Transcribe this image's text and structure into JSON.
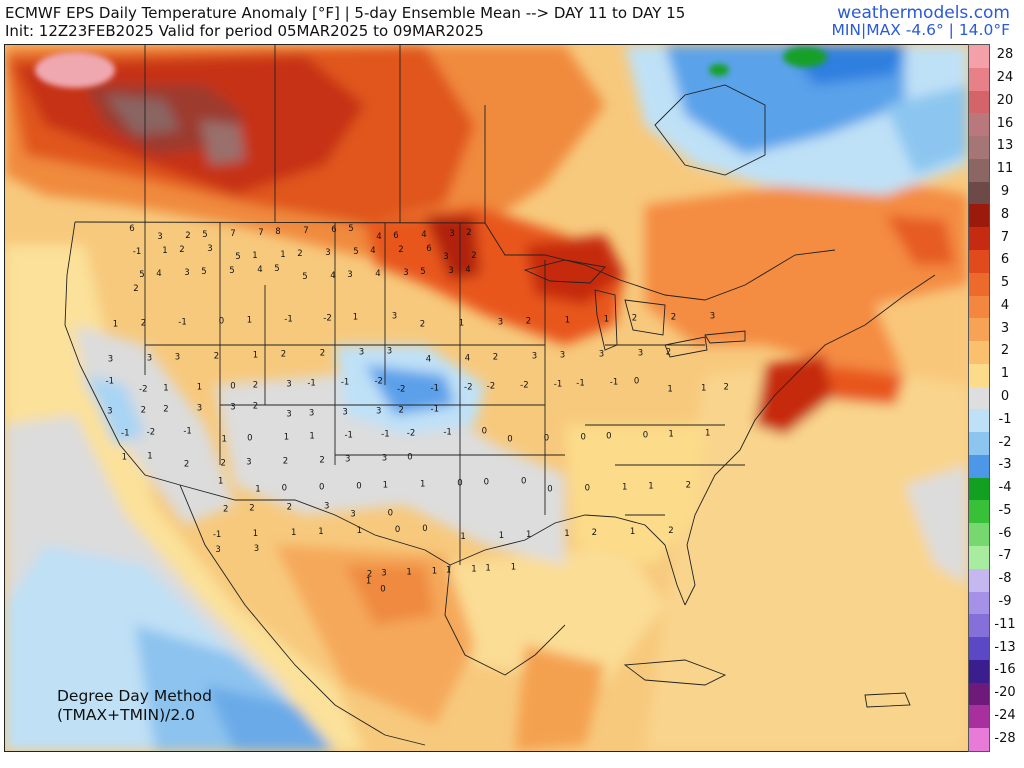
{
  "header": {
    "title_line1": "ECMWF EPS Daily Temperature Anomaly [°F] | 5-day Ensemble Mean --> DAY 11 to DAY 15",
    "title_line2": "Init: 12Z23FEB2025 Valid for period 05MAR2025 to 09MAR2025",
    "brand": "weathermodels.com",
    "minmax": "MIN|MAX -4.6° | 14.0°F"
  },
  "method_note": {
    "line1": "Degree Day Method",
    "line2": "(TMAX+TMIN)/2.0"
  },
  "colorbar": [
    {
      "label": "28",
      "color": "#f3a0a8"
    },
    {
      "label": "24",
      "color": "#e88088"
    },
    {
      "label": "20",
      "color": "#d46468"
    },
    {
      "label": "16",
      "color": "#b9797c"
    },
    {
      "label": "13",
      "color": "#a57675"
    },
    {
      "label": "11",
      "color": "#8b6663"
    },
    {
      "label": "9",
      "color": "#6d4a48"
    },
    {
      "label": "8",
      "color": "#9c1a0c"
    },
    {
      "label": "7",
      "color": "#c62a10"
    },
    {
      "label": "6",
      "color": "#e04a1c"
    },
    {
      "label": "5",
      "color": "#ec6a2c"
    },
    {
      "label": "4",
      "color": "#f3873f"
    },
    {
      "label": "3",
      "color": "#f7a355"
    },
    {
      "label": "2",
      "color": "#fac06e"
    },
    {
      "label": "1",
      "color": "#fcdc8a"
    },
    {
      "label": "0",
      "color": "#dedede"
    },
    {
      "label": "-1",
      "color": "#bfe1f7"
    },
    {
      "label": "-2",
      "color": "#8cc6f0"
    },
    {
      "label": "-3",
      "color": "#4d97e8"
    },
    {
      "label": "-4",
      "color": "#12a022"
    },
    {
      "label": "-5",
      "color": "#38c038"
    },
    {
      "label": "-6",
      "color": "#76d86e"
    },
    {
      "label": "-7",
      "color": "#a8eca0"
    },
    {
      "label": "-8",
      "color": "#c5b8f0"
    },
    {
      "label": "-9",
      "color": "#a592e6"
    },
    {
      "label": "-11",
      "color": "#8470d8"
    },
    {
      "label": "-13",
      "color": "#5b48c4"
    },
    {
      "label": "-16",
      "color": "#3a1e8e"
    },
    {
      "label": "-20",
      "color": "#6e1a7a"
    },
    {
      "label": "-24",
      "color": "#a8309e"
    },
    {
      "label": "-28",
      "color": "#e87ad8"
    }
  ],
  "station_values": [
    "6",
    "3",
    "2",
    "5",
    "7",
    "7",
    "8",
    "7",
    "6",
    "5",
    "4",
    "6",
    "4",
    "3",
    "2",
    "-1",
    "1",
    "2",
    "3",
    "5",
    "1",
    "1",
    "2",
    "3",
    "5",
    "4",
    "2",
    "6",
    "3",
    "2",
    "5",
    "4",
    "3",
    "5",
    "5",
    "4",
    "5",
    "5",
    "4",
    "3",
    "4",
    "3",
    "5",
    "3",
    "4",
    "2",
    "1",
    "2",
    "-1",
    "0",
    "1",
    "-1",
    "-2",
    "1",
    "3",
    "2",
    "1",
    "3",
    "2",
    "1",
    "1",
    "2",
    "2",
    "3",
    "3",
    "3",
    "3",
    "2",
    "1",
    "2",
    "2",
    "3",
    "3",
    "4",
    "4",
    "2",
    "3",
    "3",
    "3",
    "3",
    "2",
    "-1",
    "-2",
    "1",
    "1",
    "0",
    "2",
    "3",
    "-1",
    "-1",
    "-2",
    "-2",
    "-1",
    "-2",
    "-2",
    "-2",
    "-1",
    "-1",
    "-1",
    "0",
    "1",
    "1",
    "2",
    "3",
    "2",
    "2",
    "3",
    "3",
    "2",
    "3",
    "3",
    "3",
    "3",
    "2",
    "-1",
    "-1",
    "-2",
    "-1",
    "1",
    "0",
    "1",
    "1",
    "-1",
    "-1",
    "-2",
    "-1",
    "0",
    "0",
    "0",
    "0",
    "0",
    "0",
    "1",
    "1",
    "1",
    "1",
    "2",
    "2",
    "3",
    "2",
    "2",
    "3",
    "3",
    "0",
    "1",
    "1",
    "0",
    "0",
    "0",
    "1",
    "1",
    "0",
    "0",
    "0",
    "0",
    "0",
    "1",
    "1",
    "2",
    "2",
    "2",
    "2",
    "3",
    "3",
    "0",
    "-1",
    "1",
    "1",
    "1",
    "1",
    "0",
    "0",
    "1",
    "1",
    "1",
    "1",
    "2",
    "1",
    "2",
    "3",
    "3",
    "2",
    "3",
    "1",
    "1",
    "1",
    "1",
    "1",
    "1",
    "1",
    "0"
  ]
}
